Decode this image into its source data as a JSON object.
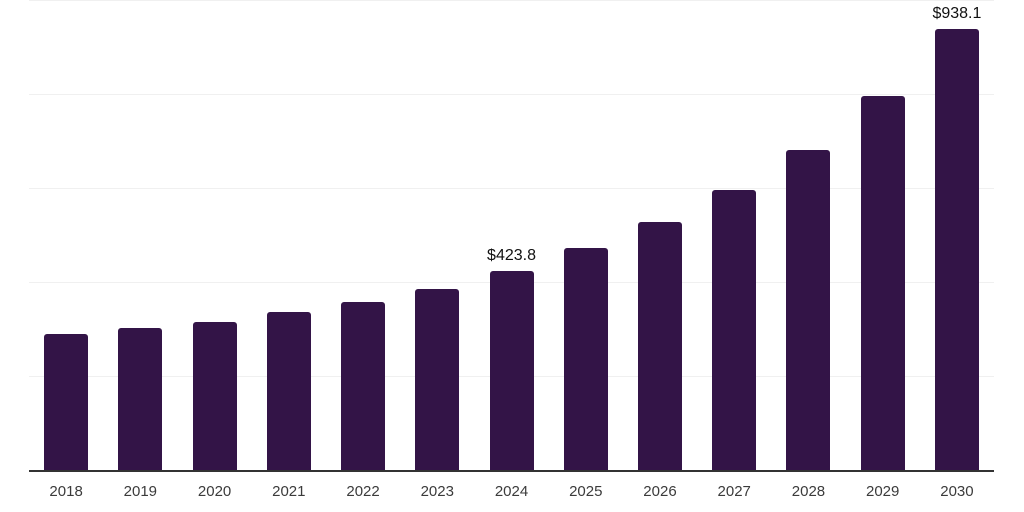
{
  "chart_data": {
    "type": "bar",
    "categories": [
      "2018",
      "2019",
      "2020",
      "2021",
      "2022",
      "2023",
      "2024",
      "2025",
      "2026",
      "2027",
      "2028",
      "2029",
      "2030"
    ],
    "values": [
      290,
      302,
      315,
      336,
      358,
      385,
      423.8,
      472,
      527,
      596,
      680,
      795,
      938.1
    ],
    "value_labels": {
      "2024": "$423.8",
      "2030": "$938.1"
    },
    "title": "",
    "xlabel": "",
    "ylabel": "",
    "ylim": [
      0,
      1000
    ],
    "gridline_values": [
      200,
      400,
      600,
      800,
      1000
    ],
    "grid": "horizontal",
    "legend": "none",
    "value_prefix": "$"
  },
  "colors": {
    "bar": "#331447",
    "axis_line": "#333333",
    "gridline": "#f0f0f0",
    "tick_label": "#3b3b3b",
    "value_label": "#111111",
    "background": "#ffffff"
  }
}
